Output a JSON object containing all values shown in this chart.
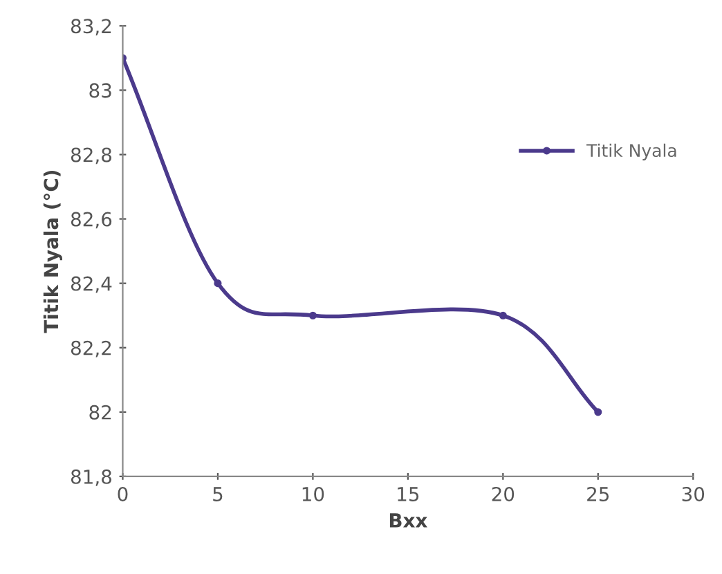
{
  "chart_data": {
    "type": "line",
    "xlabel": "Bxx",
    "ylabel": "Titik Nyala (°C)",
    "x": [
      0,
      5,
      10,
      20,
      25
    ],
    "series": [
      {
        "name": "Titik Nyala",
        "color": "#4b3a8c",
        "values": [
          83.1,
          82.4,
          82.3,
          82.3,
          82.0
        ]
      }
    ],
    "xlim": [
      0,
      30
    ],
    "xticks": [
      0,
      5,
      10,
      15,
      20,
      25,
      30
    ],
    "ylim": [
      81.8,
      83.2
    ],
    "yticks": [
      {
        "value": 81.8,
        "label": "81,8"
      },
      {
        "value": 82,
        "label": "82"
      },
      {
        "value": 82.2,
        "label": "82,2"
      },
      {
        "value": 82.4,
        "label": "82,4"
      },
      {
        "value": 82.6,
        "label": "82,6"
      },
      {
        "value": 82.8,
        "label": "82,8"
      },
      {
        "value": 83,
        "label": "83"
      },
      {
        "value": 83.2,
        "label": "83,2"
      }
    ],
    "grid": false,
    "legend": "right",
    "marker": "circle",
    "line_style": "solid"
  }
}
